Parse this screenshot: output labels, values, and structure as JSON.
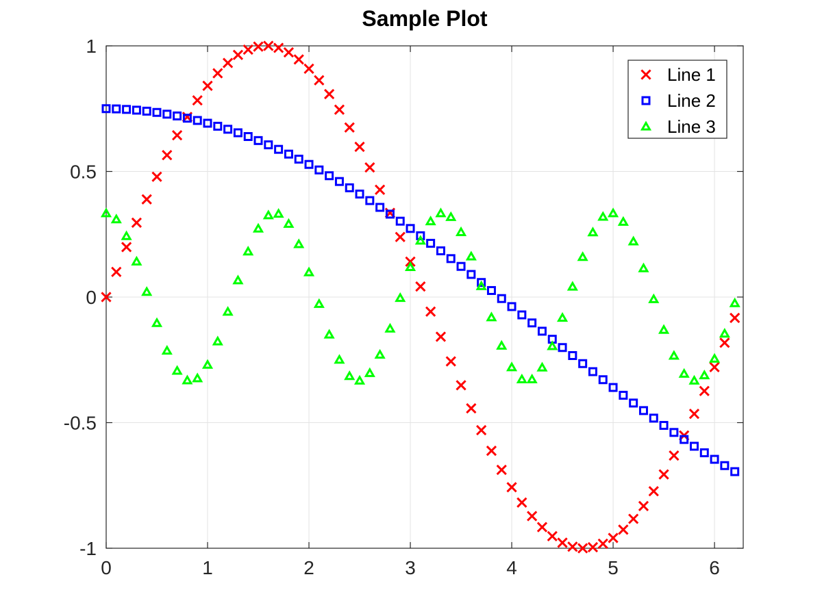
{
  "chart_data": {
    "type": "scatter",
    "title": "Sample Plot",
    "xlabel": "",
    "ylabel": "",
    "xlim": [
      0,
      6.2832
    ],
    "ylim": [
      -1,
      1
    ],
    "x_ticks": [
      0,
      1,
      2,
      3,
      4,
      5,
      6
    ],
    "y_ticks": [
      -1,
      -0.5,
      0,
      0.5,
      1
    ],
    "x_tick_labels": [
      "0",
      "1",
      "2",
      "3",
      "4",
      "5",
      "6"
    ],
    "y_tick_labels": [
      "-1",
      "-0.5",
      "0",
      "0.5",
      "1"
    ],
    "grid": true,
    "legend_position": "top-right",
    "x": [
      0.0,
      0.1,
      0.2,
      0.3,
      0.4,
      0.5,
      0.6,
      0.7,
      0.8,
      0.9,
      1.0,
      1.1,
      1.2,
      1.3,
      1.4,
      1.5,
      1.6,
      1.7,
      1.8,
      1.9,
      2.0,
      2.1,
      2.2,
      2.3,
      2.4,
      2.5,
      2.6,
      2.7,
      2.8,
      2.9,
      3.0,
      3.1,
      3.2,
      3.3,
      3.4,
      3.5,
      3.6,
      3.7,
      3.8,
      3.9,
      4.0,
      4.1,
      4.2,
      4.3,
      4.4,
      4.5,
      4.6,
      4.7,
      4.8,
      4.9,
      5.0,
      5.1,
      5.2,
      5.3,
      5.4,
      5.5,
      5.6,
      5.7,
      5.8,
      5.9,
      6.0,
      6.1,
      6.2
    ],
    "series": [
      {
        "name": "Line 1",
        "marker": "x",
        "color": "#ff0000",
        "values": [
          0.0,
          0.1,
          0.199,
          0.296,
          0.389,
          0.479,
          0.565,
          0.644,
          0.717,
          0.783,
          0.841,
          0.891,
          0.932,
          0.964,
          0.985,
          0.997,
          1.0,
          0.992,
          0.974,
          0.946,
          0.909,
          0.863,
          0.808,
          0.746,
          0.675,
          0.598,
          0.516,
          0.427,
          0.335,
          0.239,
          0.141,
          0.042,
          -0.058,
          -0.158,
          -0.256,
          -0.351,
          -0.443,
          -0.53,
          -0.612,
          -0.688,
          -0.757,
          -0.818,
          -0.872,
          -0.916,
          -0.952,
          -0.978,
          -0.994,
          -1.0,
          -0.996,
          -0.982,
          -0.959,
          -0.926,
          -0.883,
          -0.832,
          -0.773,
          -0.706,
          -0.631,
          -0.551,
          -0.465,
          -0.374,
          -0.279,
          -0.182,
          -0.083
        ]
      },
      {
        "name": "Line 2",
        "marker": "square",
        "color": "#0000ff",
        "values": [
          0.75,
          0.749,
          0.747,
          0.744,
          0.74,
          0.735,
          0.728,
          0.721,
          0.712,
          0.703,
          0.692,
          0.68,
          0.668,
          0.654,
          0.639,
          0.623,
          0.606,
          0.588,
          0.569,
          0.549,
          0.528,
          0.506,
          0.483,
          0.46,
          0.435,
          0.41,
          0.384,
          0.357,
          0.33,
          0.302,
          0.273,
          0.244,
          0.214,
          0.184,
          0.153,
          0.122,
          0.09,
          0.058,
          0.026,
          -0.006,
          -0.038,
          -0.071,
          -0.103,
          -0.136,
          -0.168,
          -0.201,
          -0.233,
          -0.265,
          -0.297,
          -0.329,
          -0.36,
          -0.391,
          -0.422,
          -0.452,
          -0.482,
          -0.511,
          -0.539,
          -0.567,
          -0.594,
          -0.62,
          -0.646,
          -0.671,
          -0.695
        ]
      },
      {
        "name": "Line 3",
        "marker": "triangle",
        "color": "#00ff00",
        "values": [
          0.333,
          0.309,
          0.242,
          0.141,
          0.02,
          -0.104,
          -0.214,
          -0.294,
          -0.332,
          -0.324,
          -0.27,
          -0.177,
          -0.059,
          0.066,
          0.181,
          0.272,
          0.325,
          0.331,
          0.291,
          0.21,
          0.098,
          -0.028,
          -0.15,
          -0.25,
          -0.315,
          -0.333,
          -0.303,
          -0.23,
          -0.126,
          -0.004,
          0.119,
          0.224,
          0.301,
          0.333,
          0.318,
          0.258,
          0.161,
          0.043,
          -0.081,
          -0.194,
          -0.28,
          -0.328,
          -0.328,
          -0.281,
          -0.196,
          -0.083,
          0.041,
          0.159,
          0.257,
          0.319,
          0.333,
          0.299,
          0.221,
          0.114,
          -0.009,
          -0.131,
          -0.234,
          -0.306,
          -0.333,
          -0.312,
          -0.246,
          -0.146,
          -0.025
        ]
      }
    ]
  }
}
